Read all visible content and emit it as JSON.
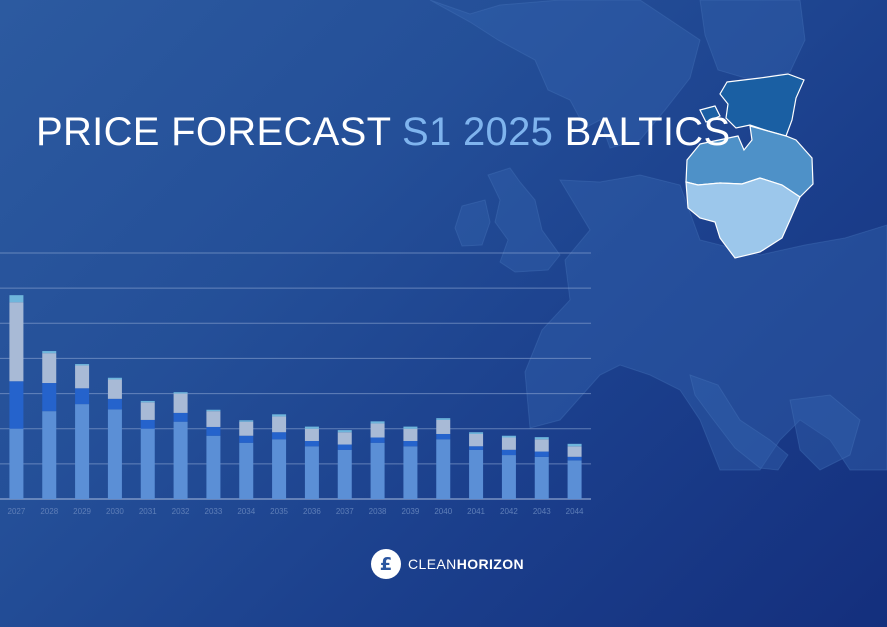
{
  "title": {
    "part1": "PRICE FORECAST ",
    "accent": "S1 2025",
    "part2": " BALTICS"
  },
  "brand": {
    "mark": "£",
    "name_light": "CLEAN",
    "name_bold": "HORIZON"
  },
  "colors": {
    "background": "#234c96",
    "accent": "#7fb4ee",
    "estonia": "#1a5fa3",
    "latvia": "#4e91c8",
    "lithuania": "#9cc7eb"
  },
  "chart_data": {
    "type": "bar",
    "stacked": true,
    "categories": [
      "2027",
      "2028",
      "2029",
      "2030",
      "2031",
      "2032",
      "2033",
      "2034",
      "2035",
      "2036",
      "2037",
      "2038",
      "2039",
      "2040",
      "2041",
      "2042",
      "2043",
      "2044"
    ],
    "series": [
      {
        "color": "#5b8fd6",
        "values": [
          2.0,
          2.5,
          2.7,
          2.55,
          2.0,
          2.2,
          1.8,
          1.6,
          1.7,
          1.5,
          1.4,
          1.6,
          1.5,
          1.7,
          1.4,
          1.25,
          1.2,
          1.1
        ]
      },
      {
        "color": "#2563cc",
        "values": [
          1.35,
          0.8,
          0.45,
          0.3,
          0.25,
          0.25,
          0.25,
          0.2,
          0.2,
          0.15,
          0.15,
          0.15,
          0.15,
          0.15,
          0.1,
          0.15,
          0.15,
          0.1
        ]
      },
      {
        "color": "#a8bad6",
        "values": [
          2.25,
          0.85,
          0.65,
          0.55,
          0.5,
          0.55,
          0.45,
          0.4,
          0.45,
          0.35,
          0.35,
          0.4,
          0.35,
          0.4,
          0.35,
          0.35,
          0.35,
          0.3
        ]
      },
      {
        "color": "#6fb6dc",
        "values": [
          0.2,
          0.06,
          0.04,
          0.05,
          0.04,
          0.04,
          0.04,
          0.04,
          0.06,
          0.06,
          0.06,
          0.06,
          0.06,
          0.05,
          0.05,
          0.05,
          0.06,
          0.07
        ]
      }
    ],
    "ylim": [
      0,
      7
    ],
    "grid": true,
    "title": "",
    "xlabel": "",
    "ylabel": ""
  }
}
